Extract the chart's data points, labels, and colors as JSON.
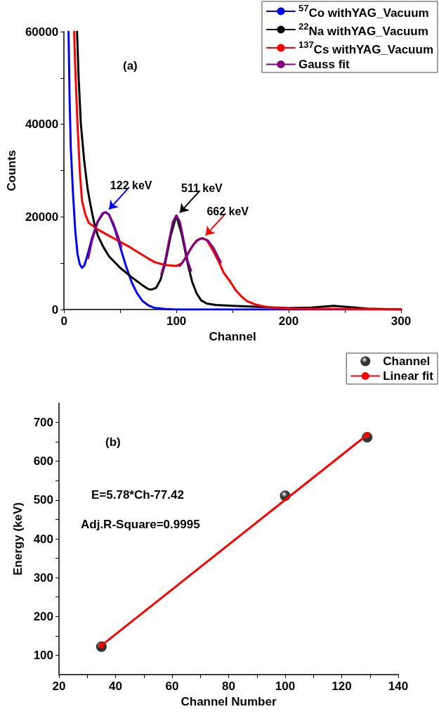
{
  "chart_data": [
    {
      "type": "line",
      "xlabel": "Channel",
      "ylabel": "Counts",
      "xlim": [
        0,
        300
      ],
      "ylim": [
        0,
        60000
      ],
      "xticks": [
        0,
        {
          "value": 50,
          "label": null
        },
        100,
        {
          "value": 150,
          "label": null
        },
        200,
        {
          "value": 250,
          "label": null
        },
        300
      ],
      "yticks": [
        0,
        {
          "value": 10000,
          "label": null
        },
        20000,
        {
          "value": 30000,
          "label": null
        },
        40000,
        {
          "value": 50000,
          "label": null
        },
        60000
      ],
      "grid": false,
      "legend": "top right",
      "marker": "none",
      "line_style": "solid",
      "series": [
        {
          "name": "$^{57}$Co withYAG_Vacuum",
          "color": "#0000ff",
          "x": [
            4,
            5,
            6,
            8,
            10,
            12,
            14,
            16,
            18,
            20,
            25,
            30,
            35,
            37,
            40,
            45,
            50,
            55,
            60,
            65,
            70,
            75,
            80,
            90,
            100,
            150,
            200,
            250,
            300
          ],
          "values": [
            60000,
            45000,
            35000,
            25000,
            17000,
            12000,
            9800,
            9000,
            9500,
            11000,
            15500,
            19000,
            20800,
            21000,
            20500,
            17500,
            13500,
            9500,
            6000,
            3500,
            1800,
            900,
            400,
            100,
            0,
            0,
            0,
            0,
            0
          ]
        },
        {
          "name": "$^{22}$Na withYAG_Vacuum",
          "color": "#000000",
          "x": [
            11.6,
            13,
            15,
            18,
            21,
            24,
            27,
            30,
            35,
            40,
            50,
            60,
            70,
            75,
            78,
            82,
            86,
            90,
            95,
            100,
            105,
            110,
            114,
            118,
            122,
            127,
            135,
            150,
            170,
            200,
            220,
            240,
            255,
            270,
            300
          ],
          "values": [
            60000,
            50000,
            40000,
            32000,
            26000,
            22000,
            18500,
            16000,
            13500,
            11500,
            9000,
            7000,
            5200,
            4400,
            4300,
            4700,
            6500,
            10000,
            16000,
            20300,
            16000,
            10000,
            6000,
            3500,
            2000,
            1300,
            1000,
            800,
            600,
            300,
            400,
            800,
            500,
            200,
            0
          ]
        },
        {
          "name": "$^{137}$Cs withYAG_Vacuum",
          "color": "#ff0000",
          "x": [
            9,
            10,
            12,
            14,
            16,
            19,
            22,
            30,
            38,
            47,
            57,
            65,
            75,
            81,
            90,
            100,
            105,
            110,
            115,
            120,
            123,
            127,
            132,
            138,
            142,
            148,
            153,
            158,
            163,
            170,
            175,
            185,
            200,
            250,
            300
          ],
          "values": [
            60000,
            52000,
            40000,
            30000,
            23500,
            20500,
            18700,
            17300,
            16200,
            15000,
            13700,
            12500,
            11000,
            10200,
            9600,
            9400,
            10000,
            12000,
            14000,
            15200,
            15400,
            15000,
            13000,
            10200,
            8000,
            6000,
            4100,
            2800,
            1800,
            1100,
            800,
            400,
            200,
            100,
            0
          ]
        },
        {
          "name": "Gauss fit",
          "color": "#800080",
          "x": [
            21.5,
            25,
            30,
            34,
            37,
            40,
            44,
            48,
            51,
            null,
            86.6,
            90,
            94,
            97,
            100,
            103,
            106,
            110,
            113,
            null,
            103,
            108,
            113,
            118,
            123,
            128,
            133,
            139.5
          ],
          "values": [
            11100,
            15000,
            19000,
            20700,
            21000,
            20500,
            18500,
            15800,
            13600,
            null,
            7600,
            10500,
            15500,
            19000,
            20300,
            19000,
            15500,
            10500,
            8400,
            null,
            9400,
            11000,
            13200,
            14900,
            15400,
            14900,
            13300,
            10200
          ]
        }
      ],
      "annotations": [
        "(a)",
        {
          "text": "122 keV",
          "x": 37,
          "y": 21000
        },
        {
          "text": "511 keV",
          "x": 100,
          "y": 20300
        },
        {
          "text": "662 keV",
          "x": 123,
          "y": 15400
        }
      ]
    },
    {
      "type": "scatter",
      "xlabel": "Channel Number",
      "ylabel": "Energy (keV)",
      "xlim": [
        20,
        140
      ],
      "ylim": [
        50,
        750
      ],
      "xticks": [
        20,
        {
          "value": 30,
          "label": null
        },
        40,
        {
          "value": 50,
          "label": null
        },
        60,
        {
          "value": 70,
          "label": null
        },
        80,
        {
          "value": 90,
          "label": null
        },
        100,
        {
          "value": 110,
          "label": null
        },
        120,
        {
          "value": 130,
          "label": null
        },
        140
      ],
      "yticks": [
        100,
        {
          "value": 150,
          "label": null
        },
        200,
        {
          "value": 250,
          "label": null
        },
        300,
        {
          "value": 350,
          "label": null
        },
        400,
        {
          "value": 450,
          "label": null
        },
        500,
        {
          "value": 550,
          "label": null
        },
        600,
        {
          "value": 650,
          "label": null
        },
        700
      ],
      "grid": false,
      "legend": "top right",
      "marker": "circle",
      "series": [
        {
          "name": "Channel",
          "color": "#000000",
          "x": [
            35,
            100,
            129
          ],
          "values": [
            122,
            511,
            662
          ]
        },
        {
          "name": "Linear fit",
          "type": "line",
          "color": "#ff0000",
          "x": [
            35,
            129
          ],
          "values": [
            125,
            668
          ]
        }
      ],
      "annotations": [
        "(b)",
        "E=5.78*Ch-77.42",
        "Adj.R-Square=0.9995"
      ]
    }
  ]
}
